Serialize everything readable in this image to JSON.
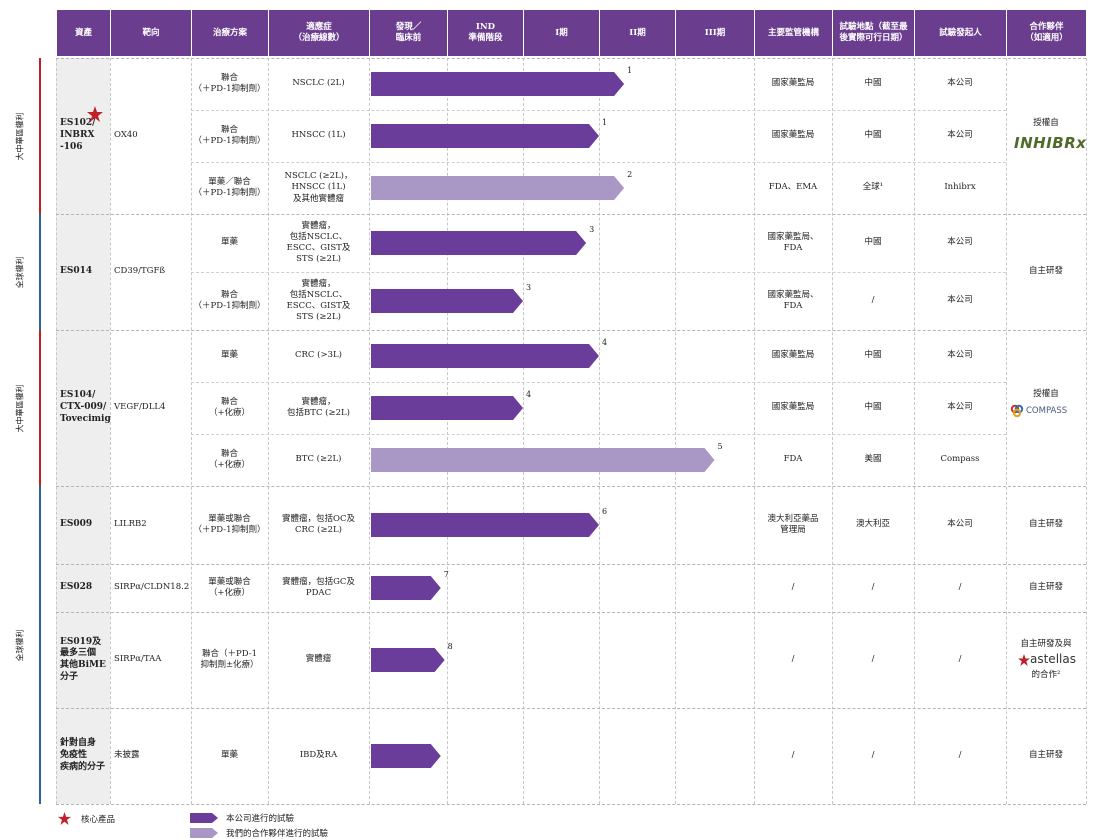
{
  "header": [
    "資產",
    "靶向",
    "治療方案",
    "適應症\n（治療線數）",
    "發現／\n臨床前",
    "IND\n準備階段",
    "I期",
    "II期",
    "III期",
    "主要監管機構",
    "試驗地點（截至最\n後實際可行日期）",
    "試驗發起人",
    "合作夥伴\n（如適用）"
  ],
  "regions": [
    {
      "label": "大中華區權利",
      "color": "#c0202a"
    },
    {
      "label": "全球權利",
      "color": "#2f5fa8"
    },
    {
      "label": "大中華區權利",
      "color": "#c0202a"
    },
    {
      "label": "全球權利",
      "color": "#2f5fa8"
    }
  ],
  "colors": {
    "company_arrow": "#6a3d9a",
    "partner_arrow": "#a997c6",
    "header_bg": "#6a3d8f",
    "star": "#c0202a"
  },
  "assets": [
    {
      "name": "ES102/\nINBRX\n-106",
      "core": true,
      "target": "OX40",
      "partner": "授權自",
      "partner_logo": "INHIBRx",
      "rows": [
        {
          "therapy": "聯合\n（＋PD-1抑制劑）",
          "indication": "NSCLC (2L)",
          "stage": 3.33,
          "note": "1",
          "partner_run": false,
          "regulator": "國家藥監局",
          "location": "中國",
          "sponsor": "本公司"
        },
        {
          "therapy": "聯合\n（＋PD-1抑制劑）",
          "indication": "HNSCC (1L)",
          "stage": 3.0,
          "note": "1",
          "partner_run": false,
          "regulator": "國家藥監局",
          "location": "中國",
          "sponsor": "本公司"
        },
        {
          "therapy": "單藥／聯合\n（＋PD-1抑制劑）",
          "indication": "NSCLC (≥2L)，\nHNSCC (1L)\n及其他實體瘤",
          "stage": 3.33,
          "note": "2",
          "partner_run": true,
          "regulator": "FDA、EMA",
          "location": "全球¹",
          "sponsor": "Inhibrx"
        }
      ]
    },
    {
      "name": "ES014",
      "core": false,
      "target": "CD39/TGFß",
      "partner": "自主研發",
      "partner_logo": "",
      "rows": [
        {
          "therapy": "單藥",
          "indication": "實體瘤，\n包括NSCLC、\nESCC、GIST及\nSTS (≥2L)",
          "stage": 2.83,
          "note": "3",
          "partner_run": false,
          "regulator": "國家藥監局、\nFDA",
          "location": "中國",
          "sponsor": "本公司"
        },
        {
          "therapy": "聯合\n（＋PD-1抑制劑）",
          "indication": "實體瘤，\n包括NSCLC、\nESCC、GIST及\nSTS (≥2L)",
          "stage": 2.0,
          "note": "3",
          "partner_run": false,
          "regulator": "國家藥監局、\nFDA",
          "location": "/",
          "sponsor": "本公司"
        }
      ]
    },
    {
      "name": "ES104/\nCTX-009/\nTovecimig",
      "core": false,
      "target": "VEGF/DLL4",
      "partner": "授權自",
      "partner_logo": "COMPASS",
      "rows": [
        {
          "therapy": "單藥",
          "indication": "CRC (>3L)",
          "stage": 3.0,
          "note": "4",
          "partner_run": false,
          "regulator": "國家藥監局",
          "location": "中國",
          "sponsor": "本公司"
        },
        {
          "therapy": "聯合\n（+化療）",
          "indication": "實體瘤，\n包括BTC (≥2L)",
          "stage": 2.0,
          "note": "4",
          "partner_run": false,
          "regulator": "國家藥監局",
          "location": "中國",
          "sponsor": "本公司"
        },
        {
          "therapy": "聯合\n（+化療）",
          "indication": "BTC (≥2L)",
          "stage": 4.5,
          "note": "5",
          "partner_run": true,
          "regulator": "FDA",
          "location": "美國",
          "sponsor": "Compass"
        }
      ]
    },
    {
      "name": "ES009",
      "core": false,
      "target": "LILRB2",
      "partner": "自主研發",
      "partner_logo": "",
      "rows": [
        {
          "therapy": "單藥或聯合\n（＋PD-1抑制劑）",
          "indication": "實體瘤，包括OC及\nCRC (≥2L)",
          "stage": 3.0,
          "note": "6",
          "partner_run": false,
          "regulator": "澳大利亞藥品\n管理局",
          "location": "澳大利亞",
          "sponsor": "本公司"
        }
      ]
    },
    {
      "name": "ES028",
      "core": false,
      "target": "SIRPα/CLDN18.2",
      "partner": "自主研發",
      "partner_logo": "",
      "rows": [
        {
          "therapy": "單藥或聯合\n（+化療）",
          "indication": "實體瘤，包括GC及\nPDAC",
          "stage": 0.92,
          "note": "7",
          "partner_run": false,
          "regulator": "/",
          "location": "/",
          "sponsor": "/"
        }
      ]
    },
    {
      "name": "ES019及\n最多三個\n其他BiME\n分子",
      "core": false,
      "target": "SIRPα/TAA",
      "partner": "自主研發及與\n的合作²",
      "partner_logo": "astellas",
      "rows": [
        {
          "therapy": "聯合（＋PD-1\n抑制劑±化療）",
          "indication": "實體瘤",
          "stage": 0.97,
          "note": "8",
          "partner_run": false,
          "regulator": "/",
          "location": "/",
          "sponsor": "/"
        }
      ]
    },
    {
      "name": "針對自身\n免疫性\n疾病的分子",
      "core": false,
      "target": "未披露",
      "partner": "自主研發",
      "partner_logo": "",
      "rows": [
        {
          "therapy": "單藥",
          "indication": "IBD及RA",
          "stage": 0.92,
          "note": "",
          "partner_run": false,
          "regulator": "/",
          "location": "/",
          "sponsor": "/"
        }
      ]
    }
  ],
  "legend": {
    "core_product": "核心產品",
    "company_trial": "本公司進行的試驗",
    "partner_trial": "我們的合作夥伴進行的試驗"
  }
}
